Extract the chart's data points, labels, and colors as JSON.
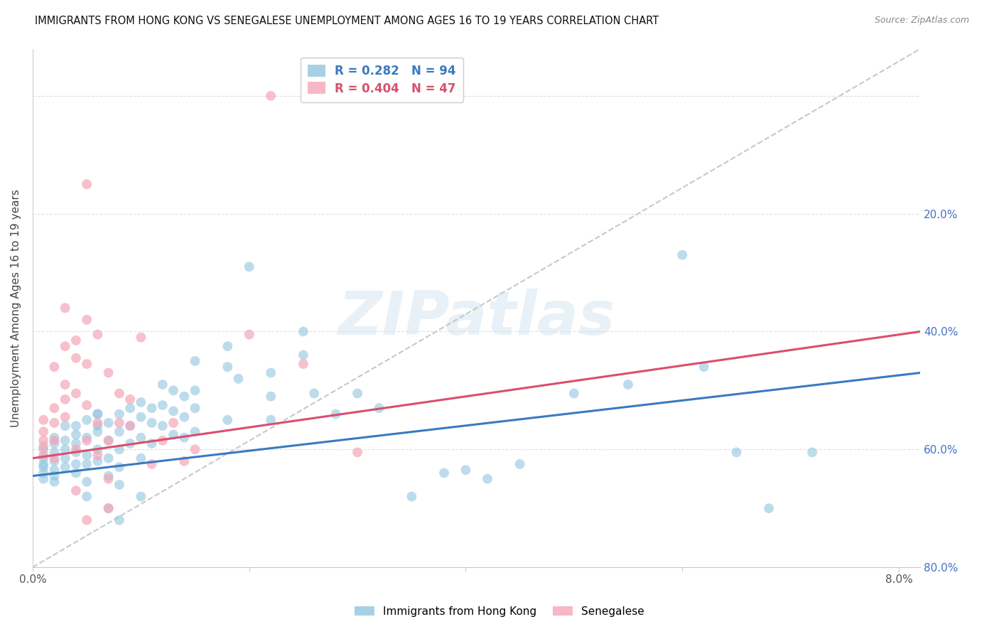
{
  "title": "IMMIGRANTS FROM HONG KONG VS SENEGALESE UNEMPLOYMENT AMONG AGES 16 TO 19 YEARS CORRELATION CHART",
  "source": "Source: ZipAtlas.com",
  "ylabel": "Unemployment Among Ages 16 to 19 years",
  "legend_blue_label": "Immigrants from Hong Kong",
  "legend_pink_label": "Senegalese",
  "R_blue": 0.282,
  "N_blue": 94,
  "R_pink": 0.404,
  "N_pink": 47,
  "watermark": "ZIPatlas",
  "blue_color": "#92c5de",
  "pink_color": "#f4a6b8",
  "blue_line_color": "#3a7abf",
  "pink_line_color": "#d94f6e",
  "dashed_line_color": "#c8c8c8",
  "blue_scatter": [
    [
      0.001,
      0.185
    ],
    [
      0.001,
      0.175
    ],
    [
      0.001,
      0.2
    ],
    [
      0.001,
      0.16
    ],
    [
      0.001,
      0.15
    ],
    [
      0.001,
      0.17
    ],
    [
      0.002,
      0.21
    ],
    [
      0.002,
      0.18
    ],
    [
      0.002,
      0.195
    ],
    [
      0.002,
      0.165
    ],
    [
      0.002,
      0.22
    ],
    [
      0.002,
      0.145
    ],
    [
      0.002,
      0.155
    ],
    [
      0.003,
      0.215
    ],
    [
      0.003,
      0.185
    ],
    [
      0.003,
      0.2
    ],
    [
      0.003,
      0.17
    ],
    [
      0.003,
      0.24
    ],
    [
      0.004,
      0.225
    ],
    [
      0.004,
      0.195
    ],
    [
      0.004,
      0.175
    ],
    [
      0.004,
      0.21
    ],
    [
      0.004,
      0.16
    ],
    [
      0.004,
      0.24
    ],
    [
      0.005,
      0.25
    ],
    [
      0.005,
      0.22
    ],
    [
      0.005,
      0.19
    ],
    [
      0.005,
      0.175
    ],
    [
      0.005,
      0.145
    ],
    [
      0.005,
      0.12
    ],
    [
      0.006,
      0.26
    ],
    [
      0.006,
      0.23
    ],
    [
      0.006,
      0.2
    ],
    [
      0.006,
      0.18
    ],
    [
      0.006,
      0.26
    ],
    [
      0.006,
      0.24
    ],
    [
      0.007,
      0.245
    ],
    [
      0.007,
      0.215
    ],
    [
      0.007,
      0.185
    ],
    [
      0.007,
      0.155
    ],
    [
      0.007,
      0.1
    ],
    [
      0.008,
      0.26
    ],
    [
      0.008,
      0.23
    ],
    [
      0.008,
      0.2
    ],
    [
      0.008,
      0.17
    ],
    [
      0.008,
      0.14
    ],
    [
      0.008,
      0.08
    ],
    [
      0.009,
      0.27
    ],
    [
      0.009,
      0.24
    ],
    [
      0.009,
      0.21
    ],
    [
      0.01,
      0.28
    ],
    [
      0.01,
      0.255
    ],
    [
      0.01,
      0.22
    ],
    [
      0.01,
      0.185
    ],
    [
      0.01,
      0.12
    ],
    [
      0.011,
      0.27
    ],
    [
      0.011,
      0.245
    ],
    [
      0.011,
      0.21
    ],
    [
      0.012,
      0.31
    ],
    [
      0.012,
      0.275
    ],
    [
      0.012,
      0.24
    ],
    [
      0.013,
      0.3
    ],
    [
      0.013,
      0.265
    ],
    [
      0.013,
      0.225
    ],
    [
      0.014,
      0.29
    ],
    [
      0.014,
      0.255
    ],
    [
      0.014,
      0.22
    ],
    [
      0.015,
      0.35
    ],
    [
      0.015,
      0.3
    ],
    [
      0.015,
      0.27
    ],
    [
      0.015,
      0.23
    ],
    [
      0.018,
      0.375
    ],
    [
      0.018,
      0.34
    ],
    [
      0.018,
      0.25
    ],
    [
      0.019,
      0.32
    ],
    [
      0.02,
      0.51
    ],
    [
      0.022,
      0.33
    ],
    [
      0.022,
      0.29
    ],
    [
      0.022,
      0.25
    ],
    [
      0.025,
      0.4
    ],
    [
      0.025,
      0.36
    ],
    [
      0.026,
      0.295
    ],
    [
      0.028,
      0.26
    ],
    [
      0.03,
      0.295
    ],
    [
      0.032,
      0.27
    ],
    [
      0.035,
      0.12
    ],
    [
      0.038,
      0.16
    ],
    [
      0.04,
      0.165
    ],
    [
      0.042,
      0.15
    ],
    [
      0.045,
      0.175
    ],
    [
      0.05,
      0.295
    ],
    [
      0.055,
      0.31
    ],
    [
      0.06,
      0.53
    ],
    [
      0.062,
      0.34
    ],
    [
      0.065,
      0.195
    ],
    [
      0.068,
      0.1
    ],
    [
      0.072,
      0.195
    ]
  ],
  "pink_scatter": [
    [
      0.001,
      0.205
    ],
    [
      0.001,
      0.19
    ],
    [
      0.001,
      0.23
    ],
    [
      0.001,
      0.215
    ],
    [
      0.001,
      0.25
    ],
    [
      0.002,
      0.27
    ],
    [
      0.002,
      0.245
    ],
    [
      0.002,
      0.215
    ],
    [
      0.002,
      0.185
    ],
    [
      0.002,
      0.34
    ],
    [
      0.003,
      0.31
    ],
    [
      0.003,
      0.285
    ],
    [
      0.003,
      0.255
    ],
    [
      0.003,
      0.375
    ],
    [
      0.003,
      0.44
    ],
    [
      0.004,
      0.355
    ],
    [
      0.004,
      0.295
    ],
    [
      0.004,
      0.2
    ],
    [
      0.004,
      0.13
    ],
    [
      0.004,
      0.385
    ],
    [
      0.005,
      0.42
    ],
    [
      0.005,
      0.345
    ],
    [
      0.005,
      0.275
    ],
    [
      0.005,
      0.215
    ],
    [
      0.005,
      0.65
    ],
    [
      0.005,
      0.08
    ],
    [
      0.006,
      0.395
    ],
    [
      0.006,
      0.245
    ],
    [
      0.006,
      0.19
    ],
    [
      0.007,
      0.33
    ],
    [
      0.007,
      0.215
    ],
    [
      0.007,
      0.15
    ],
    [
      0.007,
      0.1
    ],
    [
      0.008,
      0.295
    ],
    [
      0.008,
      0.245
    ],
    [
      0.009,
      0.285
    ],
    [
      0.009,
      0.24
    ],
    [
      0.01,
      0.39
    ],
    [
      0.011,
      0.175
    ],
    [
      0.012,
      0.215
    ],
    [
      0.013,
      0.245
    ],
    [
      0.014,
      0.18
    ],
    [
      0.015,
      0.2
    ],
    [
      0.02,
      0.395
    ],
    [
      0.022,
      0.8
    ],
    [
      0.025,
      0.345
    ],
    [
      0.03,
      0.195
    ]
  ],
  "xlim": [
    0.0,
    0.082
  ],
  "ylim": [
    0.0,
    0.88
  ],
  "yticks": [
    0.0,
    0.2,
    0.4,
    0.6,
    0.8
  ],
  "xtick_vals": [
    0.0,
    0.02,
    0.04,
    0.06,
    0.08
  ],
  "blue_line_x": [
    0.0,
    0.082
  ],
  "blue_line_y": [
    0.155,
    0.33
  ],
  "pink_line_x": [
    0.0,
    0.082
  ],
  "pink_line_y": [
    0.185,
    0.4
  ],
  "dash_line_x": [
    0.0,
    0.082
  ],
  "dash_line_y": [
    0.0,
    0.88
  ]
}
